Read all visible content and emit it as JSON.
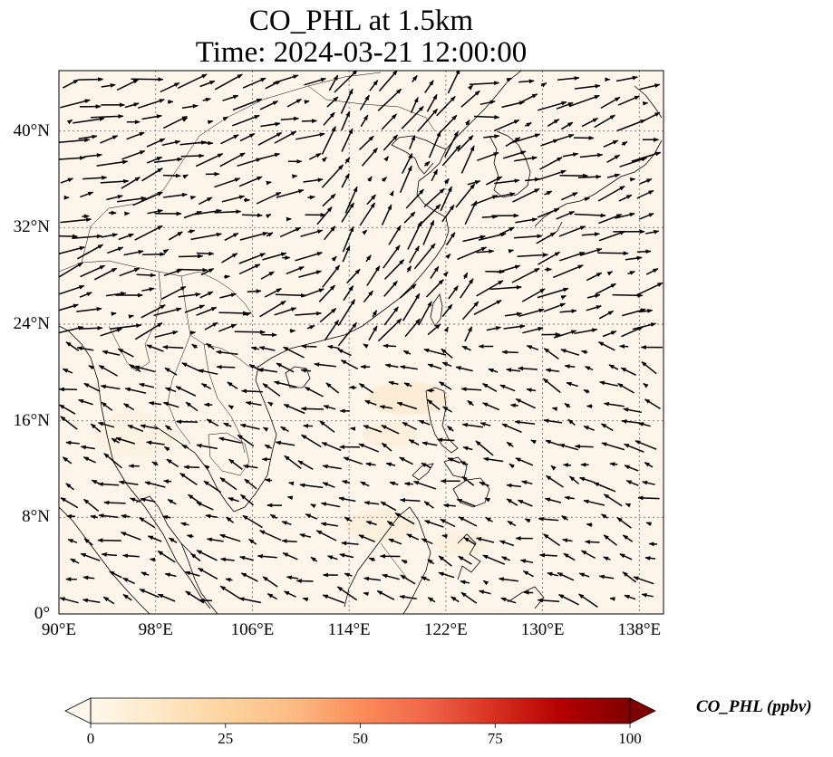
{
  "title": {
    "line1": "CO_PHL at 1.5km",
    "line2": "Time: 2024-03-21 12:00:00"
  },
  "map": {
    "projection": "PlateCarree",
    "lon_range": [
      90,
      140
    ],
    "lat_range": [
      0,
      45
    ],
    "background_fill": "#fdf5ea",
    "field_name": "CO_PHL",
    "features": [
      "coastlines",
      "country-borders",
      "lat-lon-gridlines",
      "wind-vectors"
    ]
  },
  "x_ticks": [
    "90°E",
    "98°E",
    "106°E",
    "114°E",
    "122°E",
    "130°E",
    "138°E"
  ],
  "y_ticks": [
    "0°",
    "8°N",
    "16°N",
    "24°N",
    "32°N",
    "40°N"
  ],
  "colorbar": {
    "label": "CO_PHL (ppbv)",
    "ticks": [
      "0",
      "25",
      "50",
      "75",
      "100"
    ],
    "range": [
      0,
      100
    ],
    "extend": "both",
    "colormap": "OrRd",
    "colors": [
      "#fff7ec",
      "#fee8c8",
      "#fdd49e",
      "#fdbb84",
      "#fc8d59",
      "#ef6548",
      "#d7301f",
      "#b30000",
      "#7f0000"
    ]
  }
}
